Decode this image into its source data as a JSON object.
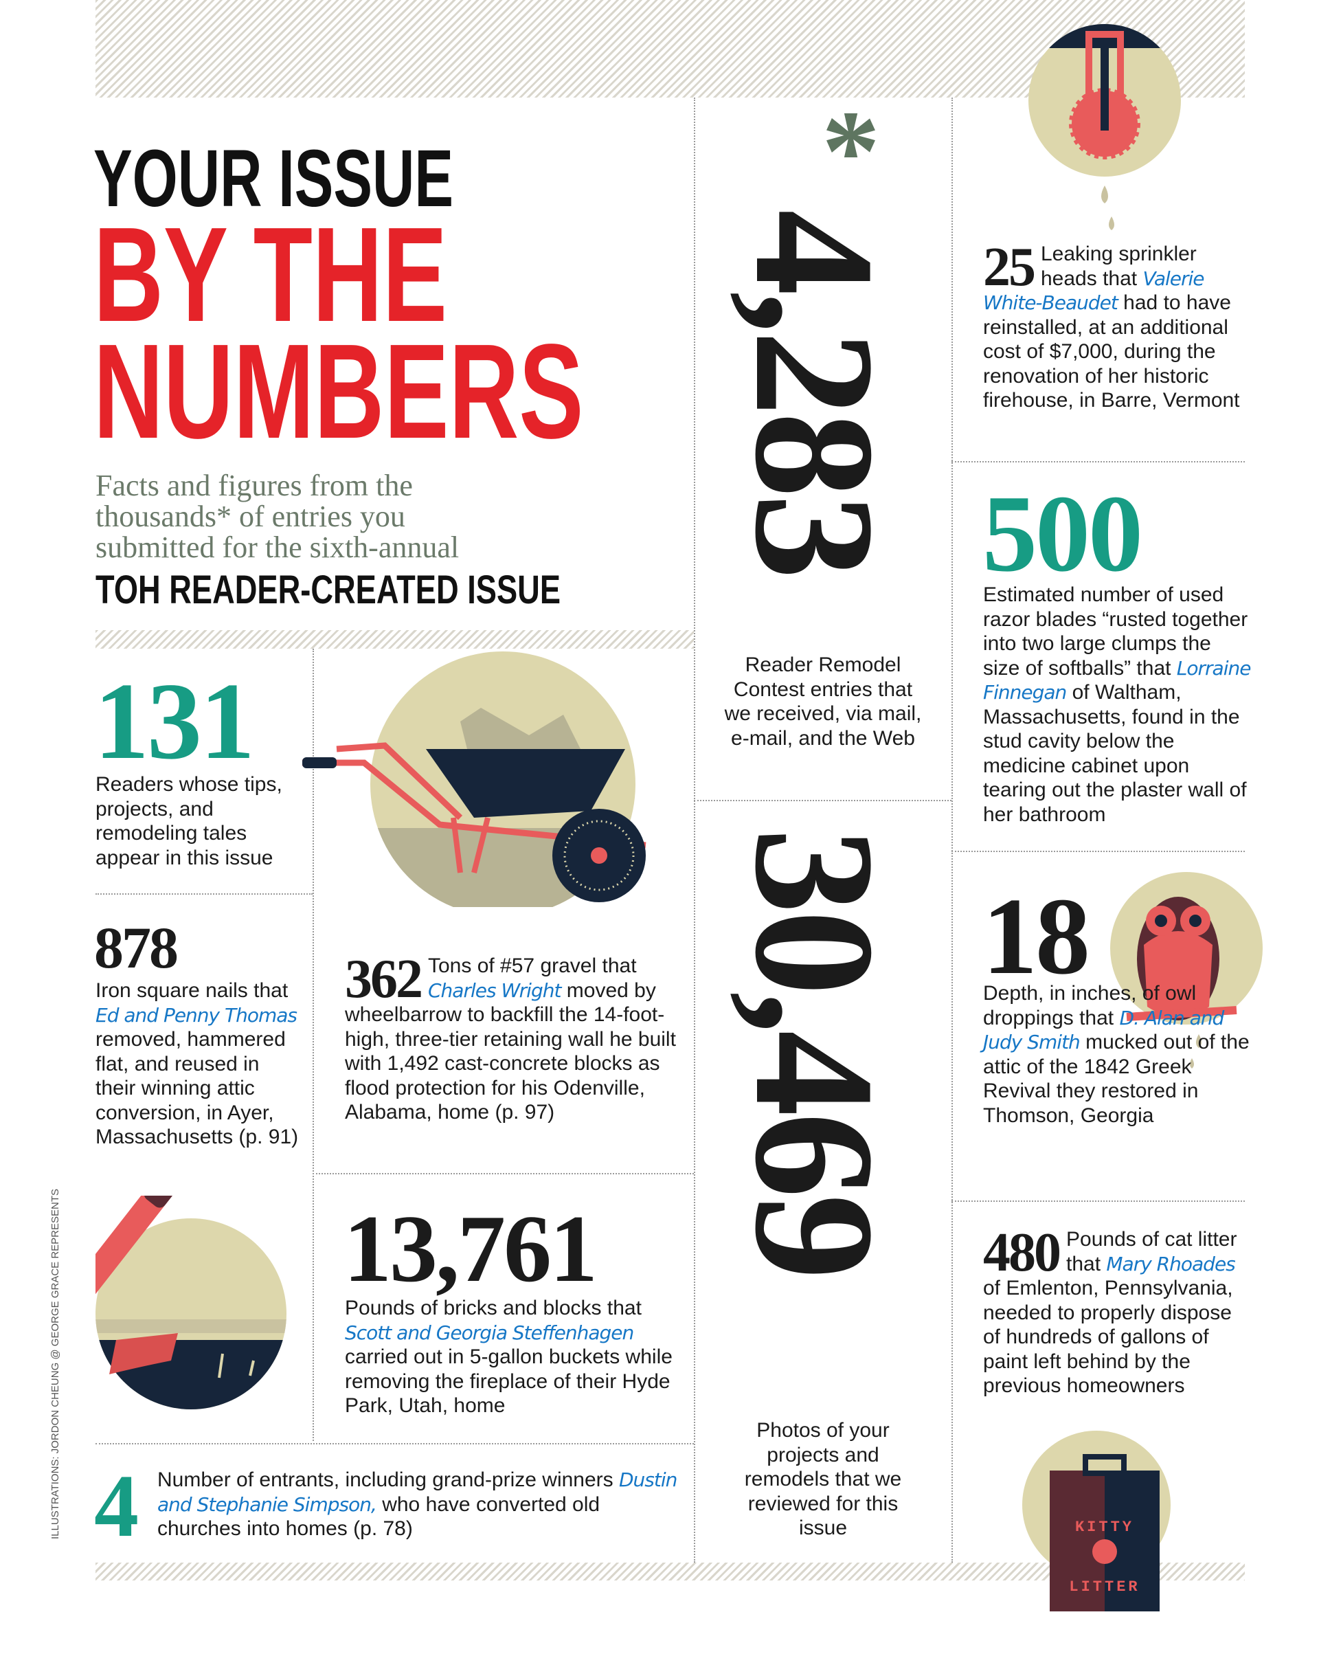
{
  "title": {
    "line1": "YOUR ISSUE",
    "line2": "BY THE",
    "line3": "NUMBERS",
    "subtitle": [
      "Facts and figures from the",
      "thousands* of entries you",
      "submitted for the sixth-annual"
    ],
    "issue": "TOH READER-CREATED ISSUE"
  },
  "colors": {
    "red": "#e52329",
    "teal": "#179c84",
    "navy": "#16253a",
    "name_blue": "#1677c6",
    "subtitle": "#6b7a6a",
    "hatch": "#d9d6cc"
  },
  "credit": "ILLUSTRATIONS: JORDON CHEUNG @ GEORGE GRACE REPRESENTS",
  "stats": {
    "s131": {
      "number": "131",
      "text": "Readers whose tips, projects, and remodeling tales appear in this issue"
    },
    "s878": {
      "number": "878",
      "pre": "Iron square nails that ",
      "name": "Ed and Penny Thomas",
      "post": " removed, hammered flat, and reused in their winning attic conversion, in Ayer, Massachusetts (p. 91)"
    },
    "s362": {
      "number": "362",
      "pre": "Tons of #57 gravel that ",
      "name": "Charles Wright",
      "post": " moved by wheelbarrow to backfill the 14-foot-high, three-tier retaining wall he built with 1,492 cast-concrete blocks as flood protection for his Odenville, Alabama, home (p. 97)"
    },
    "s13761": {
      "number": "13,761",
      "pre": "Pounds of bricks and blocks that ",
      "name": "Scott and Georgia Steffenhagen",
      "post": " carried out in 5-gallon buckets while removing the fireplace of their Hyde Park, Utah, home"
    },
    "s4": {
      "number": "4",
      "pre": "Number of entrants, including grand-prize winners ",
      "name": "Dustin and Stephanie Simpson,",
      "post": " who have converted old churches into homes (p. 78)"
    },
    "s4283": {
      "number": "4,283",
      "asterisk": "*",
      "text": "Reader Remodel Contest entries that we received, via mail, e-mail, and the Web"
    },
    "s30469": {
      "number": "30,469",
      "text": "Photos of your projects and remodels that we reviewed for this issue"
    },
    "s25": {
      "number": "25",
      "pre": "Leaking sprinkler heads that ",
      "name": "Valerie White-Beaudet",
      "post": " had to have reinstalled, at an additional cost of $7,000, during the renovation of her historic firehouse, in Barre, Vermont"
    },
    "s500": {
      "number": "500",
      "pre": "Estimated number of used razor blades “rusted together into two large clumps the size of softballs” that ",
      "name": "Lorraine Finnegan",
      "post": " of Waltham, Massachusetts, found in the stud cavity below the medicine cabinet upon tearing out the plaster wall of her bathroom"
    },
    "s18": {
      "number": "18",
      "pre": "Depth, in inches, of owl droppings that ",
      "name": "D. Alan and Judy Smith",
      "post": " mucked out of the attic of the 1842 Greek Revival they restored in Thomson, Georgia"
    },
    "s480": {
      "number": "480",
      "pre": "Pounds of cat litter that ",
      "name": "Mary Rhoades",
      "post": " of Emlenton, Pennsylvania, needed to properly dispose of hundreds of gallons of paint left behind by the previous homeowners"
    }
  },
  "illustrations": {
    "sprinkler": "sprinkler-icon",
    "wheelbarrow": "wheelbarrow-icon",
    "hammer": "hammer-icon",
    "owl": "owl-icon",
    "litter": "kitty-litter-bag-icon",
    "bag_text": [
      "KITTY",
      "LITTER"
    ]
  }
}
